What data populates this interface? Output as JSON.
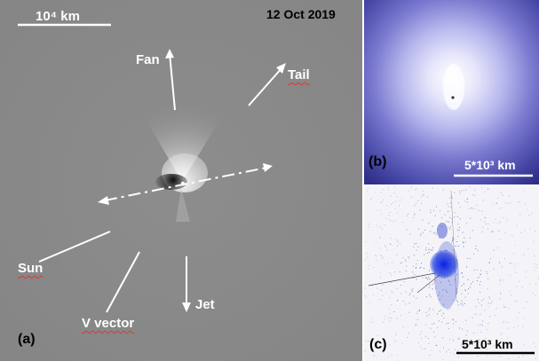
{
  "panel_a": {
    "date": "12 Oct 2019",
    "scale_label": "10⁴ km",
    "panel_label": "(a)",
    "labels": {
      "fan": "Fan",
      "tail": "Tail",
      "sun": "Sun",
      "v_vector": "V vector",
      "jet": "Jet"
    }
  },
  "panel_b": {
    "panel_label": "(b)",
    "scale_label": "5*10³ km"
  },
  "panel_c": {
    "panel_label": "(c)",
    "scale_label": "5*10³ km"
  }
}
